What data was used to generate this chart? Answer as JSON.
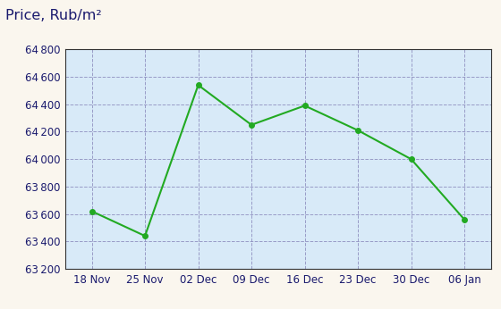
{
  "title": "Price, Rub/m²",
  "x_labels": [
    "18 Nov",
    "25 Nov",
    "02 Dec",
    "09 Dec",
    "16 Dec",
    "23 Dec",
    "30 Dec",
    "06 Jan"
  ],
  "y_values": [
    63620,
    63440,
    64540,
    64250,
    64390,
    64210,
    64000,
    63560
  ],
  "ylim": [
    63200,
    64800
  ],
  "yticks": [
    63200,
    63400,
    63600,
    63800,
    64000,
    64200,
    64400,
    64600,
    64800
  ],
  "line_color": "#22aa22",
  "marker_color": "#22aa22",
  "background_plot": "#d8eaf8",
  "background_fig": "#faf6ee",
  "grid_color": "#8888bb",
  "title_color": "#1a1a6e",
  "tick_color": "#1a1a6e",
  "title_fontsize": 11.5,
  "tick_fontsize": 8.5,
  "border_color": "#333333"
}
